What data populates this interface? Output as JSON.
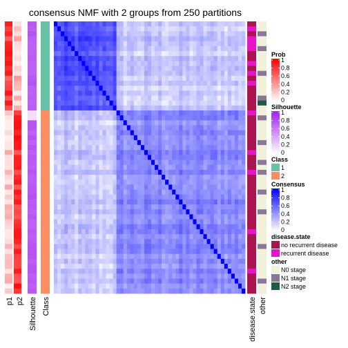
{
  "chart_data": {
    "type": "heatmap",
    "title": "consensus NMF with 2 groups from 250 partitions",
    "n_samples": 55,
    "group_sizes": [
      18,
      37
    ],
    "block_mean_consensus": {
      "within_class_1": 0.65,
      "within_class_2": 0.45,
      "between_classes": 0.2
    },
    "left_annotation_labels": [
      "p1",
      "p2",
      "Silhouette",
      "Class"
    ],
    "right_annotation_labels": [
      "disease.state",
      "other"
    ],
    "legends": [
      {
        "title": "Prob",
        "type": "gradient",
        "ticks": [
          "1",
          "0.8",
          "0.6",
          "0.4",
          "0.2",
          "0"
        ],
        "colors": [
          "#ff0000",
          "#ffffff"
        ]
      },
      {
        "title": "Silhouette",
        "type": "gradient",
        "ticks": [
          "1",
          "0.8",
          "0.6",
          "0.4",
          "0.2",
          "0"
        ],
        "colors": [
          "#a020f0",
          "#ffffff"
        ]
      },
      {
        "title": "Class",
        "type": "discrete",
        "items": [
          {
            "label": "1",
            "color": "#66c2a5"
          },
          {
            "label": "2",
            "color": "#fc8d62"
          }
        ]
      },
      {
        "title": "Consensus",
        "type": "gradient",
        "ticks": [
          "1",
          "0.8",
          "0.6",
          "0.4",
          "0.2",
          "0"
        ],
        "colors": [
          "#0000ff",
          "#ffffff"
        ]
      },
      {
        "title": "disease.state",
        "type": "discrete",
        "items": [
          {
            "label": "no recurrent disease",
            "color": "#a8154f"
          },
          {
            "label": "recurrent disease",
            "color": "#e815c8"
          }
        ]
      },
      {
        "title": "other",
        "type": "discrete",
        "items": [
          {
            "label": "N0 stage",
            "color": "#f1f0d9"
          },
          {
            "label": "N1 stage",
            "color": "#8b7898"
          },
          {
            "label": "N2 stage",
            "color": "#1e5a46"
          }
        ]
      }
    ]
  }
}
